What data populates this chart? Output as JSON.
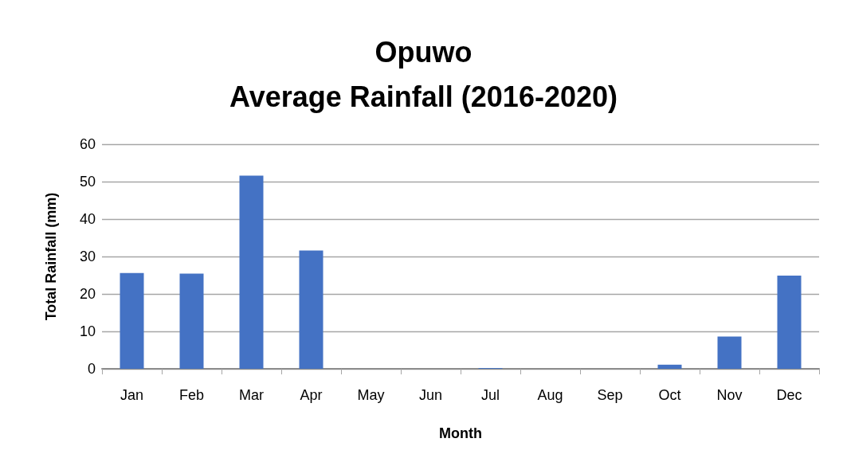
{
  "chart_data": {
    "type": "bar",
    "title": "Opuwo\nAverage Rainfall (2016-2020)",
    "xlabel": "Month",
    "ylabel": "Total Rainfall (mm)",
    "categories": [
      "Jan",
      "Feb",
      "Mar",
      "Apr",
      "May",
      "Jun",
      "Jul",
      "Aug",
      "Sep",
      "Oct",
      "Nov",
      "Dec"
    ],
    "values": [
      25.6,
      25.4,
      51.6,
      31.6,
      0,
      0,
      0.2,
      0,
      0,
      1.1,
      8.6,
      24.9
    ],
    "color": "#4472c4",
    "ylim": [
      0,
      60
    ],
    "yticks": [
      0,
      10,
      20,
      30,
      40,
      50,
      60
    ],
    "grid": "y"
  }
}
